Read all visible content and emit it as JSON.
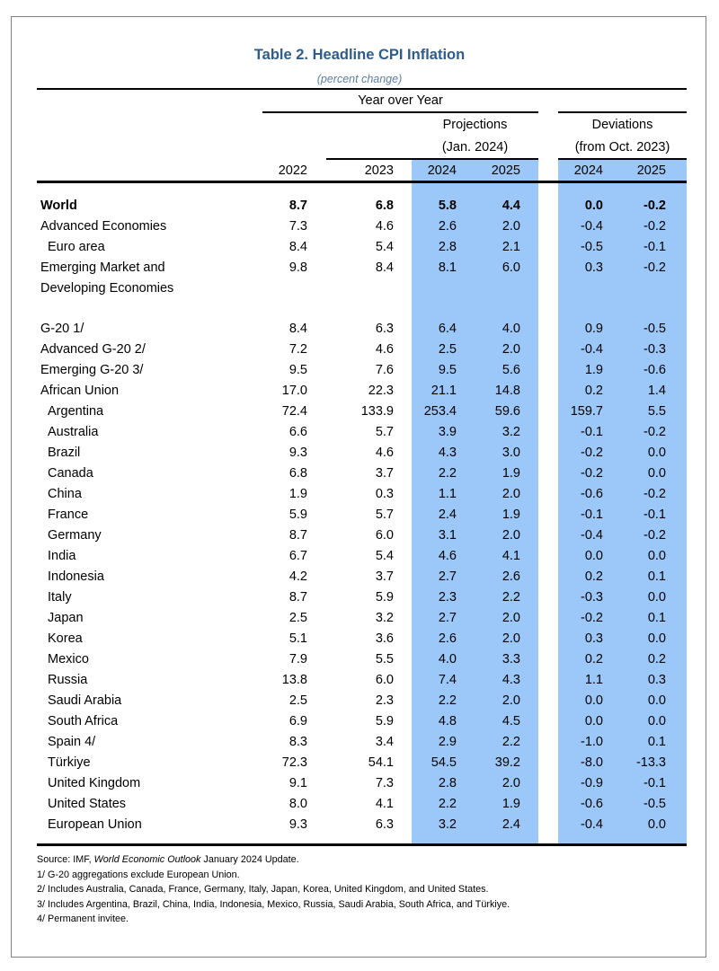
{
  "title": "Table 2. Headline CPI Inflation",
  "subtitle": "(percent change)",
  "headers": {
    "yoy": "Year over Year",
    "projections": "Projections",
    "projections_sub": "(Jan. 2024)",
    "deviations": "Deviations",
    "deviations_sub": "(from Oct. 2023)",
    "y2022": "2022",
    "y2023": "2023",
    "p2024": "2024",
    "p2025": "2025",
    "d2024": "2024",
    "d2025": "2025"
  },
  "rows": [
    {
      "label": "World",
      "values": [
        "8.7",
        "6.8",
        "5.8",
        "4.4",
        "0.0",
        "-0.2"
      ]
    },
    {
      "label": "Advanced Economies",
      "values": [
        "7.3",
        "4.6",
        "2.6",
        "2.0",
        "-0.4",
        "-0.2"
      ]
    },
    {
      "label": "Euro area",
      "values": [
        "8.4",
        "5.4",
        "2.8",
        "2.1",
        "-0.5",
        "-0.1"
      ]
    },
    {
      "label": "Emerging Market and",
      "label2": "Developing Economies",
      "values": [
        "9.8",
        "8.4",
        "8.1",
        "6.0",
        "0.3",
        "-0.2"
      ]
    },
    {
      "label": "G-20 1/",
      "values": [
        "8.4",
        "6.3",
        "6.4",
        "4.0",
        "0.9",
        "-0.5"
      ]
    },
    {
      "label": "Advanced G-20 2/",
      "values": [
        "7.2",
        "4.6",
        "2.5",
        "2.0",
        "-0.4",
        "-0.3"
      ]
    },
    {
      "label": "Emerging G-20 3/",
      "values": [
        "9.5",
        "7.6",
        "9.5",
        "5.6",
        "1.9",
        "-0.6"
      ]
    },
    {
      "label": "African Union",
      "values": [
        "17.0",
        "22.3",
        "21.1",
        "14.8",
        "0.2",
        "1.4"
      ]
    },
    {
      "label": "Argentina",
      "values": [
        "72.4",
        "133.9",
        "253.4",
        "59.6",
        "159.7",
        "5.5"
      ]
    },
    {
      "label": "Australia",
      "values": [
        "6.6",
        "5.7",
        "3.9",
        "3.2",
        "-0.1",
        "-0.2"
      ]
    },
    {
      "label": "Brazil",
      "values": [
        "9.3",
        "4.6",
        "4.3",
        "3.0",
        "-0.2",
        "0.0"
      ]
    },
    {
      "label": "Canada",
      "values": [
        "6.8",
        "3.7",
        "2.2",
        "1.9",
        "-0.2",
        "0.0"
      ]
    },
    {
      "label": "China",
      "values": [
        "1.9",
        "0.3",
        "1.1",
        "2.0",
        "-0.6",
        "-0.2"
      ]
    },
    {
      "label": "France",
      "values": [
        "5.9",
        "5.7",
        "2.4",
        "1.9",
        "-0.1",
        "-0.1"
      ]
    },
    {
      "label": "Germany",
      "values": [
        "8.7",
        "6.0",
        "3.1",
        "2.0",
        "-0.4",
        "-0.2"
      ]
    },
    {
      "label": "India",
      "values": [
        "6.7",
        "5.4",
        "4.6",
        "4.1",
        "0.0",
        "0.0"
      ]
    },
    {
      "label": "Indonesia",
      "values": [
        "4.2",
        "3.7",
        "2.7",
        "2.6",
        "0.2",
        "0.1"
      ]
    },
    {
      "label": "Italy",
      "values": [
        "8.7",
        "5.9",
        "2.3",
        "2.2",
        "-0.3",
        "0.0"
      ]
    },
    {
      "label": "Japan",
      "values": [
        "2.5",
        "3.2",
        "2.7",
        "2.0",
        "-0.2",
        "0.1"
      ]
    },
    {
      "label": "Korea",
      "values": [
        "5.1",
        "3.6",
        "2.6",
        "2.0",
        "0.3",
        "0.0"
      ]
    },
    {
      "label": "Mexico",
      "values": [
        "7.9",
        "5.5",
        "4.0",
        "3.3",
        "0.2",
        "0.2"
      ]
    },
    {
      "label": "Russia",
      "values": [
        "13.8",
        "6.0",
        "7.4",
        "4.3",
        "1.1",
        "0.3"
      ]
    },
    {
      "label": "Saudi Arabia",
      "values": [
        "2.5",
        "2.3",
        "2.2",
        "2.0",
        "0.0",
        "0.0"
      ]
    },
    {
      "label": "South Africa",
      "values": [
        "6.9",
        "5.9",
        "4.8",
        "4.5",
        "0.0",
        "0.0"
      ]
    },
    {
      "label": "Spain 4/",
      "values": [
        "8.3",
        "3.4",
        "2.9",
        "2.2",
        "-1.0",
        "0.1"
      ]
    },
    {
      "label": "Türkiye",
      "values": [
        "72.3",
        "54.1",
        "54.5",
        "39.2",
        "-8.0",
        "-13.3"
      ]
    },
    {
      "label": "United Kingdom",
      "values": [
        "9.1",
        "7.3",
        "2.8",
        "2.0",
        "-0.9",
        "-0.1"
      ]
    },
    {
      "label": "United States",
      "values": [
        "8.0",
        "4.1",
        "2.2",
        "1.9",
        "-0.6",
        "-0.5"
      ]
    },
    {
      "label": "European Union",
      "values": [
        "9.3",
        "6.3",
        "3.2",
        "2.4",
        "-0.4",
        "0.0"
      ]
    }
  ],
  "notes": {
    "source_prefix": "Source: IMF, ",
    "source_italic": "World Economic Outlook",
    "source_suffix": " January 2024 Update.",
    "n1": "1/ G-20 aggregations exclude European Union.",
    "n2": "2/ Includes Australia, Canada, France, Germany, Italy, Japan, Korea, United Kingdom, and United States.",
    "n3": "3/ Includes Argentina, Brazil, China, India, Indonesia, Mexico, Russia, Saudi Arabia, South Africa, and Türkiye.",
    "n4": "4/ Permanent invitee."
  }
}
